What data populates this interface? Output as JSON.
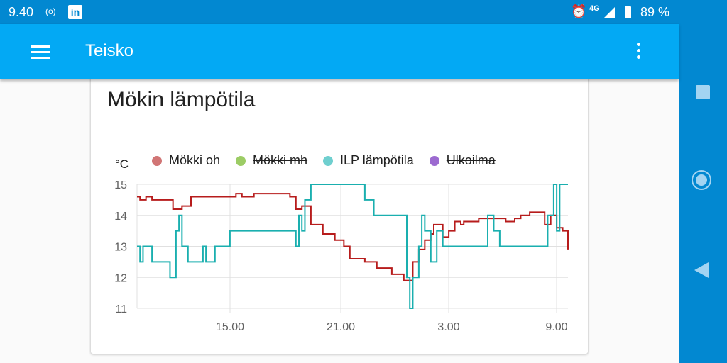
{
  "status_bar": {
    "time": "9.40",
    "radio_icon": "hotspot-icon",
    "app_icon": "in",
    "network": "4G",
    "battery": "89 %"
  },
  "app_bar": {
    "title": "Teisko"
  },
  "card": {
    "title": "Mökin lämpötila"
  },
  "colors": {
    "status_bar": "#0288d1",
    "app_bar": "#03a9f4",
    "mokki_oh": "#b71c1c",
    "ilp": "#1aafaf"
  },
  "chart_data": {
    "type": "line",
    "title": "Mökin lämpötila",
    "ylabel": "°C",
    "ylim": [
      11,
      15
    ],
    "yticks": [
      "15",
      "14",
      "13",
      "12",
      "11"
    ],
    "xticks": [
      "15.00",
      "21.00",
      "3.00",
      "9.00"
    ],
    "grid": true,
    "legend": [
      {
        "name": "Mökki oh",
        "color": "#d17575",
        "hidden": false
      },
      {
        "name": "Mökki mh",
        "color": "#9ccc65",
        "hidden": true
      },
      {
        "name": "ILP lämpötila",
        "color": "#6fcfcf",
        "hidden": false
      },
      {
        "name": "Ulkoilma",
        "color": "#9c6ad0",
        "hidden": true
      }
    ],
    "series": [
      {
        "name": "Mökki oh",
        "step": true,
        "points": [
          [
            "9:50",
            14.6
          ],
          [
            "10:00",
            14.5
          ],
          [
            "10:20",
            14.6
          ],
          [
            "10:40",
            14.5
          ],
          [
            "11:50",
            14.2
          ],
          [
            "12:20",
            14.3
          ],
          [
            "12:50",
            14.6
          ],
          [
            "15:20",
            14.7
          ],
          [
            "15:40",
            14.6
          ],
          [
            "16:20",
            14.7
          ],
          [
            "18:20",
            14.6
          ],
          [
            "18:40",
            14.2
          ],
          [
            "19:00",
            14.3
          ],
          [
            "19:30",
            13.7
          ],
          [
            "20:10",
            13.4
          ],
          [
            "20:50",
            13.2
          ],
          [
            "21:20",
            13.0
          ],
          [
            "21:40",
            12.6
          ],
          [
            "22:30",
            12.5
          ],
          [
            "23:10",
            12.3
          ],
          [
            "24:00",
            12.1
          ],
          [
            "0:40",
            11.9
          ],
          [
            "1:10",
            12.5
          ],
          [
            "1:30",
            12.9
          ],
          [
            "1:50",
            13.2
          ],
          [
            "2:10",
            13.4
          ],
          [
            "2:20",
            13.7
          ],
          [
            "2:50",
            13.3
          ],
          [
            "3:10",
            13.5
          ],
          [
            "3:30",
            13.8
          ],
          [
            "3:50",
            13.7
          ],
          [
            "4:00",
            13.8
          ],
          [
            "4:50",
            13.9
          ],
          [
            "6:20",
            13.8
          ],
          [
            "6:50",
            13.9
          ],
          [
            "7:10",
            14.0
          ],
          [
            "7:40",
            14.1
          ],
          [
            "8:30",
            13.7
          ],
          [
            "8:50",
            14.0
          ],
          [
            "9:10",
            13.6
          ],
          [
            "9:30",
            13.5
          ],
          [
            "10:10",
            13.0
          ],
          [
            "10:40",
            12.9
          ]
        ]
      },
      {
        "name": "ILP lämpötila",
        "step": true,
        "points": [
          [
            "9:50",
            13.0
          ],
          [
            "10:00",
            12.5
          ],
          [
            "10:10",
            13.0
          ],
          [
            "10:40",
            12.5
          ],
          [
            "11:40",
            12.0
          ],
          [
            "12:00",
            13.5
          ],
          [
            "12:10",
            14.0
          ],
          [
            "12:20",
            13.0
          ],
          [
            "12:40",
            12.5
          ],
          [
            "13:30",
            13.0
          ],
          [
            "13:40",
            12.5
          ],
          [
            "14:10",
            13.0
          ],
          [
            "15:00",
            13.5
          ],
          [
            "18:40",
            13.0
          ],
          [
            "18:50",
            14.0
          ],
          [
            "19:00",
            13.5
          ],
          [
            "19:10",
            14.5
          ],
          [
            "19:30",
            15.0
          ],
          [
            "22:30",
            14.5
          ],
          [
            "23:00",
            14.0
          ],
          [
            "0:50",
            12.0
          ],
          [
            "1:00",
            11.0
          ],
          [
            "1:10",
            12.0
          ],
          [
            "1:30",
            13.0
          ],
          [
            "1:40",
            14.0
          ],
          [
            "1:50",
            13.5
          ],
          [
            "2:10",
            12.5
          ],
          [
            "2:30",
            13.5
          ],
          [
            "2:50",
            13.0
          ],
          [
            "3:40",
            13.0
          ],
          [
            "5:20",
            14.0
          ],
          [
            "5:40",
            13.5
          ],
          [
            "6:00",
            13.0
          ],
          [
            "8:20",
            13.0
          ],
          [
            "8:40",
            14.0
          ],
          [
            "9:00",
            15.0
          ],
          [
            "9:10",
            13.5
          ],
          [
            "9:20",
            15.0
          ]
        ]
      }
    ]
  }
}
